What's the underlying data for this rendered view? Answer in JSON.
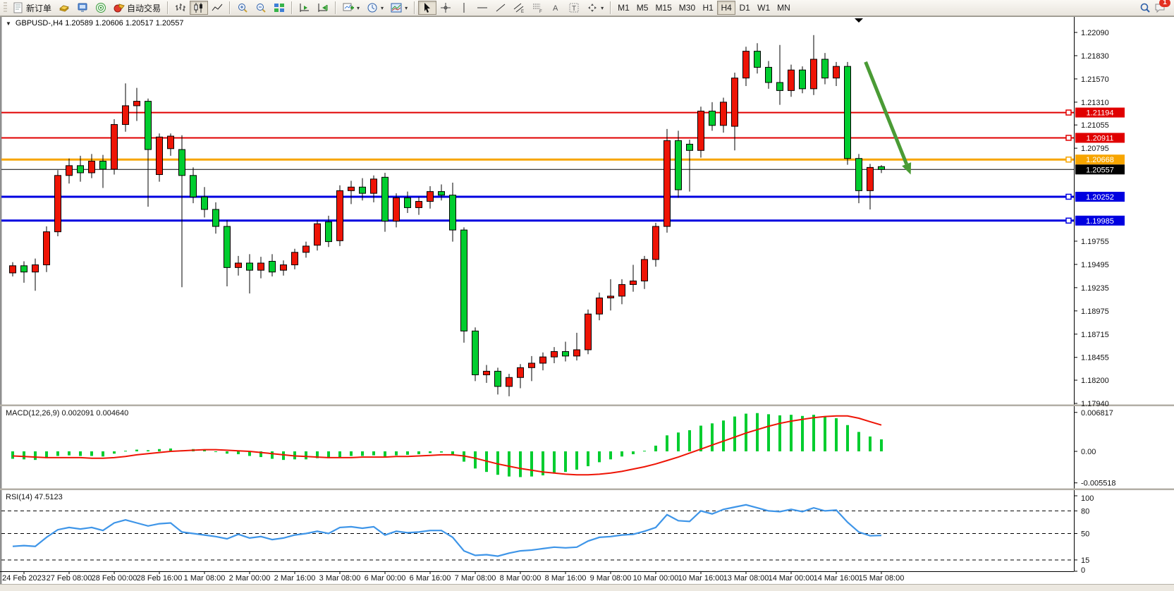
{
  "toolbar": {
    "new_order_label": "新订单",
    "autotrade_label": "自动交易",
    "timeframes": [
      "M1",
      "M5",
      "M15",
      "M30",
      "H1",
      "H4",
      "D1",
      "W1",
      "MN"
    ],
    "active_timeframe": "H4",
    "notification_badge": "1",
    "glyphs": {
      "channel": "E",
      "fibonacci": "F",
      "text": "A",
      "label": "T"
    },
    "icons": [
      "toolbar-grip",
      "new-order",
      "gold-ledger",
      "client-terminal",
      "signal-sonar",
      "autotrade",
      "bar-chart",
      "candle-chart",
      "line-chart",
      "zoom-in",
      "zoom-out",
      "tile-windows",
      "auto-scroll",
      "chart-shift",
      "new-chart",
      "periods-clock",
      "templates",
      "cursor",
      "crosshair",
      "vertical-line",
      "horizontal-line",
      "trendline",
      "equidistant-channel",
      "fibonacci",
      "text",
      "text-label",
      "arrows",
      "search",
      "notifications"
    ]
  },
  "chart": {
    "title": "GBPUSD-,H4  1.20589 1.20606 1.20517 1.20557",
    "symbol": "GBPUSD-",
    "period": "H4",
    "ohlc": {
      "open": "1.20589",
      "high": "1.20606",
      "low": "1.20517",
      "close": "1.20557"
    }
  },
  "chart_data": {
    "type": "candlestick",
    "up_color": "#ee1405",
    "down_color": "#00cd2f",
    "wick_color": "#000000",
    "background": "#ffffff",
    "candles": [
      [
        1.194,
        1.1952,
        1.1936,
        1.1948
      ],
      [
        1.1948,
        1.1953,
        1.1929,
        1.1941
      ],
      [
        1.1941,
        1.1956,
        1.192,
        1.1949
      ],
      [
        1.1949,
        1.1992,
        1.1941,
        1.1986
      ],
      [
        1.1986,
        1.2055,
        1.1981,
        1.2049
      ],
      [
        1.2049,
        1.2068,
        1.204,
        1.206
      ],
      [
        1.206,
        1.2071,
        1.2042,
        1.2052
      ],
      [
        1.2052,
        1.2073,
        1.2046,
        1.2065
      ],
      [
        1.2065,
        1.2072,
        1.2035,
        1.2056
      ],
      [
        1.2056,
        1.2112,
        1.205,
        1.2106
      ],
      [
        1.2106,
        1.2152,
        1.2098,
        1.2127
      ],
      [
        1.2127,
        1.2147,
        1.211,
        1.2132
      ],
      [
        1.2132,
        1.2135,
        1.2014,
        1.2078
      ],
      [
        1.205,
        1.2096,
        1.2042,
        1.2092
      ],
      [
        1.2079,
        1.2096,
        1.2071,
        1.2093
      ],
      [
        1.2078,
        1.2094,
        1.1924,
        1.2049
      ],
      [
        1.2049,
        1.2058,
        1.2018,
        1.2025
      ],
      [
        1.2025,
        1.2036,
        1.2002,
        1.2011
      ],
      [
        1.2011,
        1.2019,
        1.1984,
        1.1992
      ],
      [
        1.1992,
        1.1999,
        1.1925,
        1.1946
      ],
      [
        1.1946,
        1.1959,
        1.1937,
        1.1951
      ],
      [
        1.1951,
        1.1961,
        1.1917,
        1.1943
      ],
      [
        1.1943,
        1.1958,
        1.1934,
        1.1951
      ],
      [
        1.1953,
        1.1961,
        1.1936,
        1.1941
      ],
      [
        1.1943,
        1.1954,
        1.1937,
        1.1949
      ],
      [
        1.1949,
        1.1967,
        1.1944,
        1.1963
      ],
      [
        1.1963,
        1.1975,
        1.1957,
        1.197
      ],
      [
        1.1971,
        1.1999,
        1.1965,
        1.1995
      ],
      [
        1.1997,
        1.2004,
        1.1969,
        1.1975
      ],
      [
        1.1976,
        1.2038,
        1.197,
        1.2032
      ],
      [
        1.2032,
        1.2043,
        1.2017,
        1.2036
      ],
      [
        1.2036,
        1.2046,
        1.2021,
        1.2029
      ],
      [
        1.2029,
        1.2049,
        1.2019,
        1.2045
      ],
      [
        1.2047,
        1.2052,
        1.1986,
        1.1998
      ],
      [
        1.1998,
        1.2029,
        1.1991,
        1.2024
      ],
      [
        1.2024,
        1.2031,
        1.2007,
        1.2013
      ],
      [
        1.2013,
        1.2025,
        1.2005,
        1.202
      ],
      [
        1.202,
        1.2037,
        1.2012,
        1.2031
      ],
      [
        1.2031,
        1.2039,
        1.2021,
        1.2027
      ],
      [
        1.2027,
        1.2041,
        1.1975,
        1.1988
      ],
      [
        1.1988,
        1.1991,
        1.1862,
        1.1875
      ],
      [
        1.1875,
        1.1879,
        1.1819,
        1.1826
      ],
      [
        1.1826,
        1.1837,
        1.1817,
        1.183
      ],
      [
        1.183,
        1.1834,
        1.1804,
        1.1813
      ],
      [
        1.1813,
        1.1827,
        1.1802,
        1.1823
      ],
      [
        1.1823,
        1.1838,
        1.1811,
        1.1834
      ],
      [
        1.1834,
        1.1847,
        1.1819,
        1.1839
      ],
      [
        1.1839,
        1.1851,
        1.1831,
        1.1846
      ],
      [
        1.1846,
        1.1857,
        1.1839,
        1.1852
      ],
      [
        1.1852,
        1.1863,
        1.1841,
        1.1847
      ],
      [
        1.1847,
        1.1873,
        1.1842,
        1.1854
      ],
      [
        1.1854,
        1.1899,
        1.1849,
        1.1894
      ],
      [
        1.1894,
        1.1918,
        1.1887,
        1.1912
      ],
      [
        1.1912,
        1.1933,
        1.1898,
        1.1914
      ],
      [
        1.1914,
        1.1933,
        1.1905,
        1.1927
      ],
      [
        1.1927,
        1.1949,
        1.1919,
        1.1931
      ],
      [
        1.1931,
        1.1959,
        1.1922,
        1.1955
      ],
      [
        1.1955,
        1.1996,
        1.1947,
        1.1992
      ],
      [
        1.1992,
        1.2101,
        1.1985,
        1.2088
      ],
      [
        1.2088,
        1.2099,
        1.2024,
        1.2033
      ],
      [
        1.2084,
        1.2089,
        1.2031,
        1.2077
      ],
      [
        1.2077,
        1.2126,
        1.2069,
        1.2121
      ],
      [
        1.2121,
        1.2131,
        1.2099,
        1.2105
      ],
      [
        1.2105,
        1.2136,
        1.2097,
        1.2131
      ],
      [
        1.2104,
        1.2164,
        1.2077,
        1.2158
      ],
      [
        1.2158,
        1.2193,
        1.2149,
        1.2188
      ],
      [
        1.2188,
        1.2197,
        1.2163,
        1.217
      ],
      [
        1.217,
        1.2177,
        1.2146,
        1.2153
      ],
      [
        1.2153,
        1.2195,
        1.2128,
        1.2144
      ],
      [
        1.2144,
        1.2173,
        1.2137,
        1.2167
      ],
      [
        1.2167,
        1.2171,
        1.2141,
        1.2146
      ],
      [
        1.2146,
        1.2206,
        1.2139,
        1.2179
      ],
      [
        1.2179,
        1.2186,
        1.2151,
        1.2158
      ],
      [
        1.2158,
        1.2176,
        1.2149,
        1.2171
      ],
      [
        1.2171,
        1.2176,
        1.2061,
        1.2068
      ],
      [
        1.2068,
        1.2073,
        1.2018,
        1.2032
      ],
      [
        1.2032,
        1.2062,
        1.2011,
        1.2058
      ],
      [
        1.20589,
        1.20606,
        1.20517,
        1.20557
      ]
    ],
    "price_axis_ticks": [
      "1.22090",
      "1.21830",
      "1.21570",
      "1.21310",
      "1.21055",
      "1.20795",
      "1.19755",
      "1.19495",
      "1.19235",
      "1.18975",
      "1.18715",
      "1.18455",
      "1.18200",
      "1.17940"
    ],
    "price_badges": [
      {
        "label": "1.21194",
        "color": "#e00000"
      },
      {
        "label": "1.20911",
        "color": "#e00000"
      },
      {
        "label": "1.20668",
        "color": "#f7a500"
      },
      {
        "label": "1.20557",
        "color": "#000000"
      },
      {
        "label": "1.20252",
        "color": "#0000e0"
      },
      {
        "label": "1.19985",
        "color": "#0000e0"
      }
    ],
    "hlines": [
      {
        "price": 1.21194,
        "color": "#e00000",
        "width": 2,
        "handle": true
      },
      {
        "price": 1.20911,
        "color": "#e00000",
        "width": 2,
        "handle": true
      },
      {
        "price": 1.20668,
        "color": "#f7a500",
        "width": 3,
        "handle": true
      },
      {
        "price": 1.20252,
        "color": "#0000e0",
        "width": 3,
        "handle": true
      },
      {
        "price": 1.19985,
        "color": "#0000e0",
        "width": 3,
        "handle": true
      },
      {
        "price": 1.20557,
        "color": "#000000",
        "width": 1,
        "handle": false
      }
    ],
    "current_price": "1.20557",
    "time_labels": [
      "24 Feb 2023",
      "27 Feb 08:00",
      "28 Feb 00:00",
      "28 Feb 16:00",
      "1 Mar 08:00",
      "2 Mar 00:00",
      "2 Mar 16:00",
      "3 Mar 08:00",
      "6 Mar 00:00",
      "6 Mar 16:00",
      "7 Mar 08:00",
      "8 Mar 00:00",
      "8 Mar 16:00",
      "9 Mar 08:00",
      "10 Mar 00:00",
      "10 Mar 16:00",
      "13 Mar 08:00",
      "14 Mar 00:00",
      "14 Mar 16:00",
      "15 Mar 08:00"
    ],
    "annotation_arrow": {
      "color": "#4a9b35",
      "from": {
        "index": 75.6,
        "price": 1.2176
      },
      "to": {
        "index": 79.6,
        "price": 1.205
      }
    },
    "macd": {
      "label": "MACD(12,26,9)",
      "main_value": "0.002091",
      "signal_value": "0.004640",
      "axis_labels": [
        "0.006817",
        "0.00",
        "-0.005518"
      ],
      "axis_values": [
        0.006817,
        0,
        -0.005518
      ],
      "hist_color": "#00cd2f",
      "signal_color": "#ee1405",
      "histogram": [
        -0.0013,
        -0.0014,
        -0.0015,
        -0.0012,
        -0.0008,
        -0.0007,
        -0.0008,
        -0.0008,
        -0.0009,
        -0.0004,
        0.0001,
        0.0003,
        0.0002,
        0.0004,
        0.0005,
        0.0002,
        0.0004,
        0.0003,
        0.0,
        -0.0004,
        -0.0005,
        -0.0008,
        -0.001,
        -0.0013,
        -0.0015,
        -0.0014,
        -0.0014,
        -0.0012,
        -0.0012,
        -0.001,
        -0.0008,
        -0.0008,
        -0.0007,
        -0.0009,
        -0.0007,
        -0.0006,
        -0.0005,
        -0.0003,
        -0.0002,
        -0.0005,
        -0.0018,
        -0.003,
        -0.0036,
        -0.0041,
        -0.0044,
        -0.0045,
        -0.0044,
        -0.0042,
        -0.0039,
        -0.0036,
        -0.0032,
        -0.0026,
        -0.0019,
        -0.0014,
        -0.0009,
        -0.0005,
        0.0001,
        0.001,
        0.0028,
        0.0033,
        0.0037,
        0.0045,
        0.0049,
        0.0054,
        0.0061,
        0.0066,
        0.0067,
        0.0065,
        0.0063,
        0.0064,
        0.0062,
        0.0064,
        0.006,
        0.0058,
        0.0046,
        0.0034,
        0.0026,
        0.0021
      ],
      "signal": [
        -0.0008,
        -0.0009,
        -0.001,
        -0.0011,
        -0.0011,
        -0.0011,
        -0.0011,
        -0.0012,
        -0.0012,
        -0.0011,
        -0.0009,
        -0.0006,
        -0.0004,
        -0.0002,
        0.0,
        0.0001,
        0.0002,
        0.0003,
        0.0003,
        0.0002,
        0.0001,
        0.0,
        -0.0002,
        -0.0004,
        -0.0006,
        -0.0008,
        -0.0009,
        -0.001,
        -0.0011,
        -0.0011,
        -0.0011,
        -0.001,
        -0.001,
        -0.001,
        -0.0009,
        -0.0009,
        -0.0008,
        -0.0007,
        -0.0006,
        -0.0006,
        -0.0008,
        -0.0012,
        -0.0017,
        -0.0022,
        -0.0026,
        -0.003,
        -0.0033,
        -0.0036,
        -0.0038,
        -0.004,
        -0.0041,
        -0.0041,
        -0.004,
        -0.0038,
        -0.0035,
        -0.0031,
        -0.0027,
        -0.0022,
        -0.0016,
        -0.001,
        -0.0003,
        0.0004,
        0.0011,
        0.0018,
        0.0025,
        0.0032,
        0.0038,
        0.0044,
        0.0049,
        0.0053,
        0.0056,
        0.0059,
        0.0061,
        0.0062,
        0.0062,
        0.0058,
        0.0052,
        0.0046
      ]
    },
    "rsi": {
      "label": "RSI(14)",
      "value": "47.5123",
      "color": "#3e95e8",
      "axis_labels": [
        "100",
        "80",
        "50",
        "15",
        "0"
      ],
      "axis_values": [
        100,
        80,
        50,
        15,
        0
      ],
      "levels": [
        80,
        50,
        15
      ],
      "series": [
        33,
        34,
        33,
        45,
        55,
        58,
        56,
        58,
        54,
        64,
        68,
        64,
        60,
        63,
        64,
        52,
        50,
        48,
        46,
        43,
        49,
        44,
        46,
        42,
        44,
        48,
        50,
        53,
        50,
        58,
        59,
        57,
        59,
        48,
        53,
        51,
        52,
        54,
        54,
        45,
        27,
        21,
        22,
        20,
        24,
        27,
        28,
        30,
        32,
        31,
        32,
        40,
        45,
        46,
        48,
        49,
        53,
        58,
        75,
        67,
        66,
        80,
        76,
        82,
        85,
        88,
        84,
        80,
        79,
        82,
        79,
        84,
        80,
        81,
        65,
        52,
        47,
        47.5
      ]
    }
  }
}
